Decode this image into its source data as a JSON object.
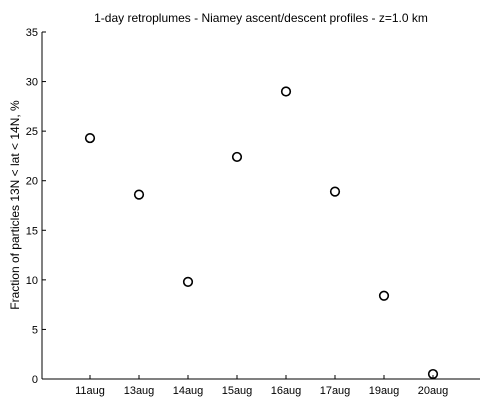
{
  "chart_data": {
    "type": "scatter",
    "title": "1-day retroplumes - Niamey ascent/descent profiles - z=1.0 km",
    "xlabel": "",
    "ylabel": "Fraction of particles 13N < lat < 14N, %",
    "categories": [
      "11aug",
      "13aug",
      "14aug",
      "15aug",
      "16aug",
      "17aug",
      "19aug",
      "20aug"
    ],
    "values": [
      24.3,
      18.6,
      9.8,
      22.4,
      29.0,
      18.9,
      8.4,
      0.5
    ],
    "ylim": [
      0,
      35
    ],
    "yticks": [
      0,
      5,
      10,
      15,
      20,
      25,
      30,
      35
    ],
    "grid": false,
    "legend": "none",
    "marker": "open-circle",
    "color": "#000000"
  }
}
